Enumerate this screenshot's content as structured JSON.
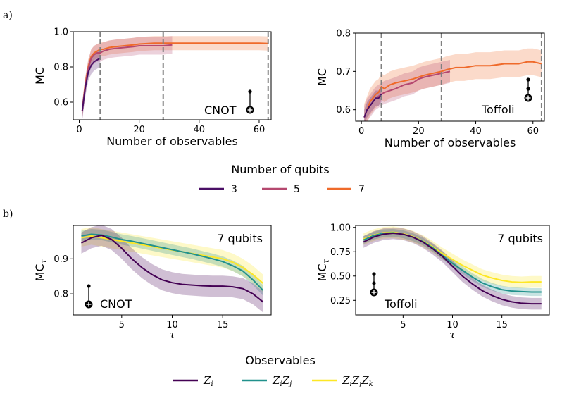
{
  "figure": {
    "panel_a_label": "a)",
    "panel_b_label": "b)"
  },
  "legend_top": {
    "title": "Number of qubits",
    "items": [
      {
        "label": "3",
        "color": "#4a0f66"
      },
      {
        "label": "5",
        "color": "#b5486f"
      },
      {
        "label": "7",
        "color": "#ef6a2a"
      }
    ]
  },
  "legend_bottom": {
    "title": "Observables",
    "items": [
      {
        "label": "Z",
        "sub": [
          "i"
        ],
        "color": "#440154"
      },
      {
        "label": "Z",
        "sub": [
          "i",
          "j"
        ],
        "color": "#21918c"
      },
      {
        "label": "Z",
        "sub": [
          "i",
          "j",
          "k"
        ],
        "color": "#fde725"
      }
    ]
  },
  "chart_data": [
    {
      "id": "a-cnot",
      "type": "line",
      "gate": "CNOT",
      "xlabel": "Number of observables",
      "ylabel": "MC",
      "xlim": [
        -2,
        64
      ],
      "ylim": [
        0.5,
        1.0
      ],
      "xticks": [
        0,
        20,
        40,
        60
      ],
      "yticks": [
        0.6,
        0.8,
        1.0
      ],
      "ytick_labels": [
        "0.6",
        "0.8",
        "1.0"
      ],
      "vlines": [
        7,
        28,
        63
      ],
      "series": [
        {
          "name": "7",
          "color": "#ef6a2a",
          "x": [
            1,
            2,
            3,
            4,
            5,
            6,
            7,
            8,
            10,
            12,
            15,
            18,
            20,
            25,
            28,
            30,
            35,
            40,
            45,
            50,
            55,
            60,
            63
          ],
          "y": [
            0.55,
            0.7,
            0.8,
            0.86,
            0.88,
            0.89,
            0.9,
            0.9,
            0.91,
            0.915,
            0.92,
            0.925,
            0.93,
            0.935,
            0.935,
            0.935,
            0.935,
            0.935,
            0.935,
            0.935,
            0.935,
            0.935,
            0.933
          ],
          "band": 0.04
        },
        {
          "name": "5",
          "color": "#b5486f",
          "x": [
            1,
            2,
            3,
            4,
            5,
            6,
            7,
            8,
            10,
            12,
            15,
            18,
            20,
            25,
            28,
            31
          ],
          "y": [
            0.55,
            0.69,
            0.79,
            0.85,
            0.87,
            0.88,
            0.88,
            0.89,
            0.9,
            0.905,
            0.91,
            0.915,
            0.92,
            0.92,
            0.92,
            0.925
          ],
          "band": 0.05
        },
        {
          "name": "3",
          "color": "#4a0f66",
          "x": [
            1,
            2,
            3,
            4,
            5,
            6,
            7
          ],
          "y": [
            0.55,
            0.68,
            0.77,
            0.81,
            0.83,
            0.84,
            0.85
          ],
          "band": 0.05
        }
      ]
    },
    {
      "id": "a-toffoli",
      "type": "line",
      "gate": "Toffoli",
      "xlabel": "Number of observables",
      "ylabel": "MC",
      "xlim": [
        -2,
        64
      ],
      "ylim": [
        0.57,
        0.8
      ],
      "xticks": [
        0,
        20,
        40,
        60
      ],
      "yticks": [
        0.6,
        0.7,
        0.8
      ],
      "ytick_labels": [
        "0.6",
        "0.7",
        "0.8"
      ],
      "vlines": [
        7,
        28,
        63
      ],
      "series": [
        {
          "name": "7",
          "color": "#ef6a2a",
          "x": [
            1,
            2,
            3,
            4,
            5,
            6,
            7,
            8,
            10,
            12,
            15,
            18,
            20,
            22,
            25,
            28,
            30,
            33,
            36,
            40,
            45,
            50,
            55,
            58,
            60,
            63
          ],
          "y": [
            0.58,
            0.6,
            0.62,
            0.63,
            0.64,
            0.645,
            0.66,
            0.655,
            0.665,
            0.67,
            0.675,
            0.68,
            0.685,
            0.69,
            0.695,
            0.7,
            0.705,
            0.71,
            0.71,
            0.715,
            0.715,
            0.72,
            0.72,
            0.725,
            0.725,
            0.72
          ],
          "band": 0.035
        },
        {
          "name": "5",
          "color": "#b5486f",
          "x": [
            1,
            2,
            3,
            4,
            5,
            6,
            7,
            8,
            10,
            12,
            15,
            18,
            20,
            22,
            25,
            28,
            31
          ],
          "y": [
            0.58,
            0.6,
            0.61,
            0.62,
            0.63,
            0.635,
            0.64,
            0.645,
            0.65,
            0.655,
            0.665,
            0.67,
            0.68,
            0.685,
            0.69,
            0.695,
            0.7
          ],
          "band": 0.03
        },
        {
          "name": "3",
          "color": "#4a0f66",
          "x": [
            1,
            2,
            3,
            4,
            5,
            6,
            7
          ],
          "y": [
            0.58,
            0.6,
            0.61,
            0.62,
            0.63,
            0.63,
            0.64
          ],
          "band": 0.02
        }
      ]
    },
    {
      "id": "b-cnot",
      "type": "line",
      "gate": "CNOT",
      "annotation": "7 qubits",
      "xlabel": "τ",
      "ylabel": "MC",
      "ylabel_sub": "τ",
      "xlim": [
        0.2,
        19.8
      ],
      "ylim": [
        0.74,
        0.995
      ],
      "xticks": [
        5,
        10,
        15
      ],
      "yticks": [
        0.8,
        0.9
      ],
      "ytick_labels": [
        "0.8",
        "0.9"
      ],
      "vlines": [],
      "series": [
        {
          "name": "ZiZjZk",
          "color": "#fde725",
          "x": [
            1,
            2,
            3,
            4,
            5,
            6,
            7,
            8,
            9,
            10,
            11,
            12,
            13,
            14,
            15,
            16,
            17,
            18,
            19
          ],
          "y": [
            0.96,
            0.965,
            0.96,
            0.955,
            0.95,
            0.945,
            0.94,
            0.935,
            0.93,
            0.925,
            0.92,
            0.915,
            0.91,
            0.905,
            0.9,
            0.89,
            0.875,
            0.855,
            0.83
          ],
          "band": 0.025
        },
        {
          "name": "ZiZj",
          "color": "#21918c",
          "x": [
            1,
            2,
            3,
            4,
            5,
            6,
            7,
            8,
            9,
            10,
            11,
            12,
            13,
            14,
            15,
            16,
            17,
            18,
            19
          ],
          "y": [
            0.965,
            0.97,
            0.968,
            0.962,
            0.955,
            0.95,
            0.944,
            0.938,
            0.932,
            0.926,
            0.92,
            0.914,
            0.907,
            0.9,
            0.892,
            0.88,
            0.865,
            0.84,
            0.81
          ],
          "band": 0.015
        },
        {
          "name": "Zi",
          "color": "#440154",
          "x": [
            1,
            2,
            3,
            4,
            5,
            6,
            7,
            8,
            9,
            10,
            11,
            12,
            13,
            14,
            15,
            16,
            17,
            18,
            19
          ],
          "y": [
            0.945,
            0.96,
            0.967,
            0.955,
            0.93,
            0.9,
            0.875,
            0.855,
            0.84,
            0.832,
            0.827,
            0.825,
            0.823,
            0.822,
            0.822,
            0.82,
            0.815,
            0.8,
            0.777
          ],
          "band": 0.03
        }
      ]
    },
    {
      "id": "b-toffoli",
      "type": "line",
      "gate": "Toffoli",
      "annotation": "7 qubits",
      "xlabel": "τ",
      "ylabel": "MC",
      "ylabel_sub": "τ",
      "xlim": [
        0.2,
        19.8
      ],
      "ylim": [
        0.1,
        1.02
      ],
      "xticks": [
        5,
        10,
        15
      ],
      "yticks": [
        0.25,
        0.5,
        0.75,
        1.0
      ],
      "ytick_labels": [
        "0.25",
        "0.50",
        "0.75",
        "1.00"
      ],
      "vlines": [],
      "series": [
        {
          "name": "ZiZjZk",
          "color": "#fde725",
          "x": [
            1,
            2,
            3,
            4,
            5,
            6,
            7,
            8,
            9,
            10,
            11,
            12,
            13,
            14,
            15,
            16,
            17,
            18,
            19
          ],
          "y": [
            0.88,
            0.92,
            0.945,
            0.95,
            0.935,
            0.905,
            0.86,
            0.8,
            0.73,
            0.67,
            0.61,
            0.56,
            0.51,
            0.48,
            0.455,
            0.44,
            0.435,
            0.44,
            0.44
          ],
          "band": 0.06
        },
        {
          "name": "ZiZj",
          "color": "#21918c",
          "x": [
            1,
            2,
            3,
            4,
            5,
            6,
            7,
            8,
            9,
            10,
            11,
            12,
            13,
            14,
            15,
            16,
            17,
            18,
            19
          ],
          "y": [
            0.87,
            0.915,
            0.94,
            0.945,
            0.93,
            0.9,
            0.855,
            0.79,
            0.71,
            0.63,
            0.56,
            0.49,
            0.43,
            0.39,
            0.36,
            0.345,
            0.34,
            0.335,
            0.335
          ],
          "band": 0.04
        },
        {
          "name": "Zi",
          "color": "#440154",
          "x": [
            1,
            2,
            3,
            4,
            5,
            6,
            7,
            8,
            9,
            10,
            11,
            12,
            13,
            14,
            15,
            16,
            17,
            18,
            19
          ],
          "y": [
            0.85,
            0.9,
            0.93,
            0.94,
            0.93,
            0.9,
            0.85,
            0.78,
            0.7,
            0.6,
            0.5,
            0.42,
            0.35,
            0.3,
            0.26,
            0.235,
            0.22,
            0.215,
            0.215
          ],
          "band": 0.06
        }
      ]
    }
  ]
}
